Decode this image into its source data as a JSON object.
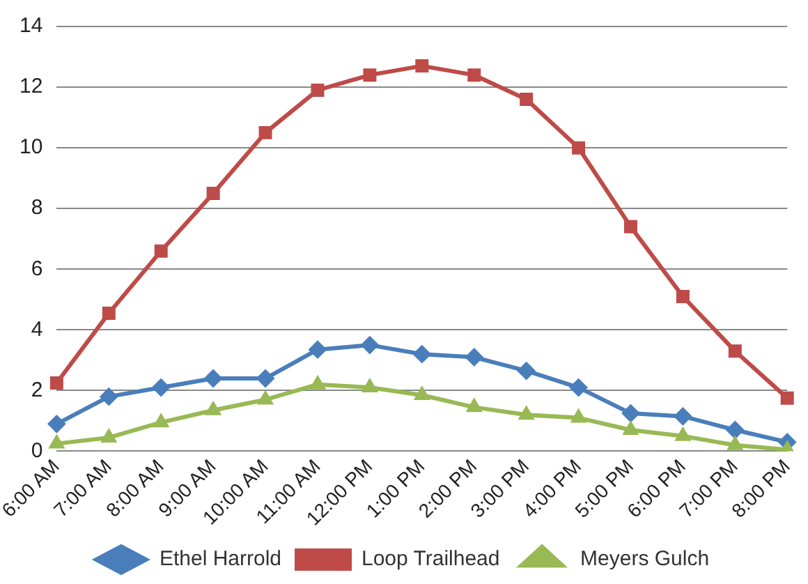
{
  "chart_data": {
    "type": "line",
    "categories": [
      "6:00 AM",
      "7:00 AM",
      "8:00 AM",
      "9:00 AM",
      "10:00 AM",
      "11:00 AM",
      "12:00 PM",
      "1:00 PM",
      "2:00 PM",
      "3:00 PM",
      "4:00 PM",
      "5:00 PM",
      "6:00 PM",
      "7:00 PM",
      "8:00 PM"
    ],
    "series": [
      {
        "name": "Ethel Harrold",
        "color": "#4a7ebb",
        "marker": "diamond",
        "values": [
          0.9,
          1.8,
          2.1,
          2.4,
          2.4,
          3.35,
          3.5,
          3.2,
          3.1,
          2.65,
          2.1,
          1.25,
          1.15,
          0.7,
          0.3
        ]
      },
      {
        "name": "Loop Trailhead",
        "color": "#be4b48",
        "marker": "square",
        "values": [
          2.25,
          4.55,
          6.6,
          8.5,
          10.5,
          11.9,
          12.4,
          12.7,
          12.4,
          11.6,
          10.0,
          7.4,
          5.1,
          3.3,
          1.75
        ]
      },
      {
        "name": "Meyers Gulch",
        "color": "#98b954",
        "marker": "triangle",
        "values": [
          0.25,
          0.45,
          0.95,
          1.35,
          1.7,
          2.2,
          2.1,
          1.85,
          1.45,
          1.2,
          1.1,
          0.7,
          0.5,
          0.2,
          0.05
        ]
      }
    ],
    "ylim": [
      0,
      14
    ],
    "yticks": [
      0,
      2,
      4,
      6,
      8,
      10,
      12,
      14
    ],
    "grid": "y",
    "legend": "bottom",
    "line_style": "solid"
  }
}
